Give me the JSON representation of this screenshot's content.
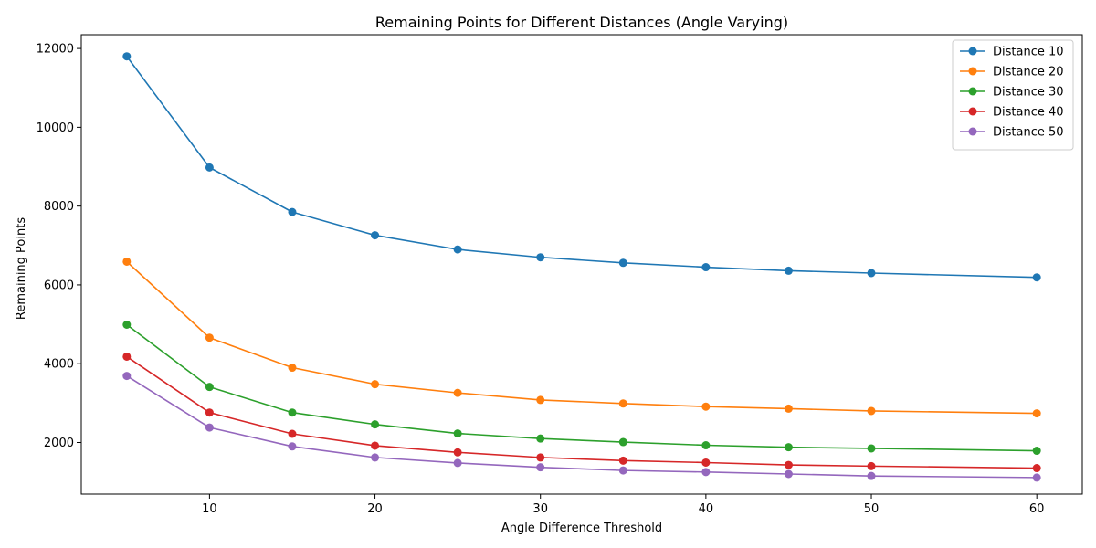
{
  "chart_data": {
    "type": "line",
    "title": "Remaining Points for Different Distances (Angle Varying)",
    "xlabel": "Angle Difference Threshold",
    "ylabel": "Remaining Points",
    "x": [
      5,
      10,
      15,
      20,
      25,
      30,
      35,
      40,
      45,
      50,
      60
    ],
    "xlim": [
      2.25,
      62.75
    ],
    "ylim": [
      690,
      12350
    ],
    "xticks": [
      10,
      20,
      30,
      40,
      50,
      60
    ],
    "yticks": [
      2000,
      4000,
      6000,
      8000,
      10000,
      12000
    ],
    "grid": false,
    "legend_position": "top-right",
    "markers": "circle",
    "series": [
      {
        "name": "Distance 10",
        "color": "#1f77b4",
        "values": [
          11800,
          8980,
          7850,
          7260,
          6900,
          6700,
          6560,
          6450,
          6360,
          6300,
          6190
        ]
      },
      {
        "name": "Distance 20",
        "color": "#ff7f0e",
        "values": [
          6590,
          4660,
          3900,
          3480,
          3260,
          3080,
          2990,
          2910,
          2860,
          2800,
          2740
        ]
      },
      {
        "name": "Distance 30",
        "color": "#2ca02c",
        "values": [
          4990,
          3410,
          2760,
          2460,
          2230,
          2100,
          2010,
          1930,
          1880,
          1850,
          1790
        ]
      },
      {
        "name": "Distance 40",
        "color": "#d62728",
        "values": [
          4180,
          2760,
          2220,
          1920,
          1750,
          1620,
          1540,
          1490,
          1430,
          1400,
          1350
        ]
      },
      {
        "name": "Distance 50",
        "color": "#9467bd",
        "values": [
          3690,
          2380,
          1900,
          1620,
          1480,
          1370,
          1290,
          1250,
          1200,
          1150,
          1110
        ]
      }
    ]
  }
}
